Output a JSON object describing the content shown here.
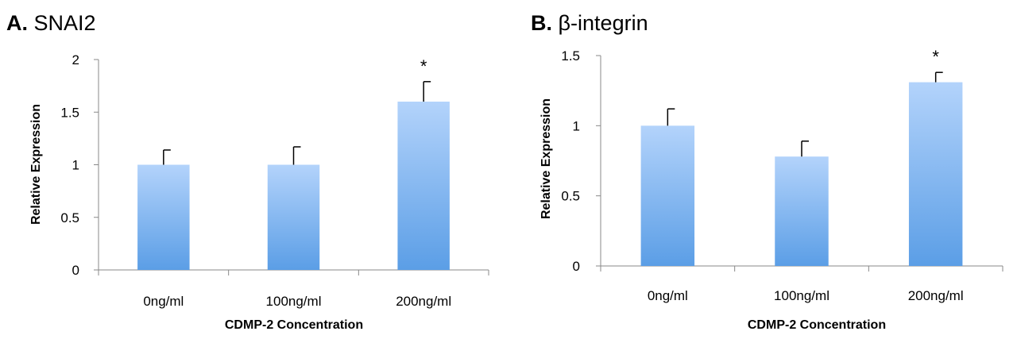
{
  "chart_data": [
    {
      "type": "bar",
      "panel_label": "A.",
      "title": "SNAI2",
      "xlabel": "CDMP-2 Concentration",
      "ylabel": "Relative Expression",
      "categories": [
        "0ng/ml",
        "100ng/ml",
        "200ng/ml"
      ],
      "values": [
        1.0,
        1.0,
        1.6
      ],
      "error_up": [
        0.14,
        0.17,
        0.19
      ],
      "significance": [
        "",
        "",
        "*"
      ],
      "ylim": [
        0,
        2
      ],
      "yticks": [
        "0",
        "0.5",
        "1",
        "1.5",
        "2"
      ],
      "grid": false,
      "bar_color_top": "#b3d3fb",
      "bar_color_bottom": "#5b9ee6"
    },
    {
      "type": "bar",
      "panel_label": "B.",
      "title": "β-integrin",
      "xlabel": "CDMP-2 Concentration",
      "ylabel": "Relative Expression",
      "categories": [
        "0ng/ml",
        "100ng/ml",
        "200ng/ml"
      ],
      "values": [
        1.0,
        0.78,
        1.31
      ],
      "error_up": [
        0.12,
        0.11,
        0.07
      ],
      "significance": [
        "",
        "",
        "*"
      ],
      "ylim": [
        0,
        1.5
      ],
      "yticks": [
        "0",
        "0.5",
        "1",
        "1.5"
      ],
      "grid": false,
      "bar_color_top": "#b3d3fb",
      "bar_color_bottom": "#5b9ee6"
    }
  ]
}
